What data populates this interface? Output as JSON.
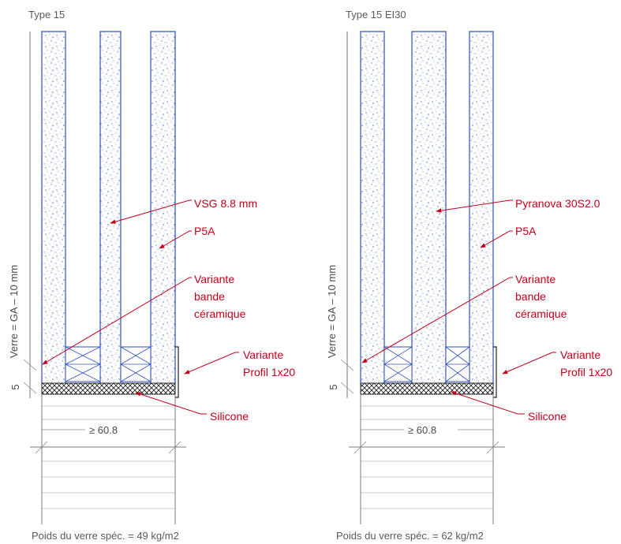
{
  "details": [
    {
      "title": "Type 15",
      "labels": {
        "glass": "VSG 8.8 mm",
        "outer": "P5A",
        "ceramic_1": "Variante",
        "ceramic_2": "bande",
        "ceramic_3": "céramique",
        "profile_1": "Variante",
        "profile_2": "Profil 1x20",
        "silicone": "Silicone"
      },
      "vertical_dimension": "Verre = GA – 10 mm",
      "gap_dimension": "5",
      "width_dimension": "≥ 60.8",
      "weight": "Poids du verre spéc. = 49 kg/m2"
    },
    {
      "title": "Type 15 EI30",
      "labels": {
        "glass": "Pyranova 30S2.0",
        "outer": "P5A",
        "ceramic_1": "Variante",
        "ceramic_2": "bande",
        "ceramic_3": "céramique",
        "profile_1": "Variante",
        "profile_2": "Profil 1x20",
        "silicone": "Silicone"
      },
      "vertical_dimension": "Verre = GA – 10 mm",
      "gap_dimension": "5",
      "width_dimension": "≥ 60.8",
      "weight": "Poids du verre spéc. = 62 kg/m2"
    }
  ],
  "colors": {
    "label": "#c0001a",
    "pane_border": "#3050b8",
    "speckle": "#5878c8"
  }
}
